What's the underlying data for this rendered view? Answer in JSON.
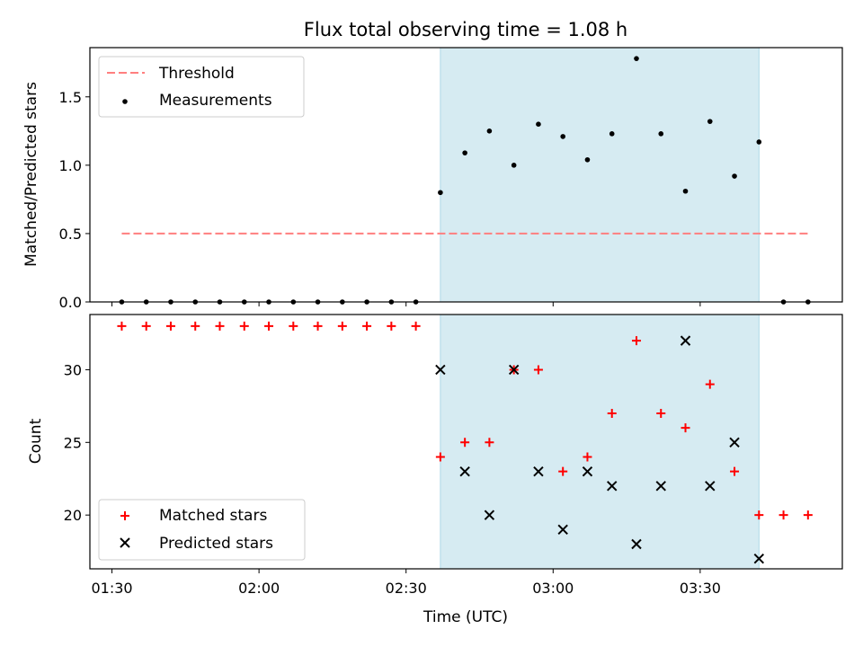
{
  "chart_data": {
    "title": "Flux total observing time = 1.08 h",
    "type": "scatter",
    "xlabel": "Time (UTC)",
    "x_ticks": [
      "01:30",
      "02:00",
      "02:30",
      "03:00",
      "03:30"
    ],
    "x_tick_minutes": [
      90,
      120,
      150,
      180,
      210
    ],
    "xlim_minutes": [
      85.5,
      239
    ],
    "shaded_span_minutes": [
      157,
      222
    ],
    "shade_color": "#add8e6",
    "times": [
      "01:32",
      "01:37",
      "01:42",
      "01:47",
      "01:52",
      "01:57",
      "02:02",
      "02:07",
      "02:12",
      "02:17",
      "02:22",
      "02:27",
      "02:32",
      "02:37",
      "02:42",
      "02:47",
      "02:52",
      "02:57",
      "03:02",
      "03:07",
      "03:12",
      "03:17",
      "03:22",
      "03:27",
      "03:32",
      "03:37",
      "03:42",
      "03:47",
      "03:52"
    ],
    "time_minutes": [
      92,
      97,
      102,
      107,
      112,
      117,
      122,
      127,
      132,
      137,
      142,
      147,
      152,
      157,
      162,
      167,
      172,
      177,
      182,
      187,
      192,
      197,
      202,
      207,
      212,
      217,
      222,
      227,
      232
    ],
    "panels": [
      {
        "ylabel": "Matched/Predicted stars",
        "ylim": [
          0,
          1.86
        ],
        "yticks": [
          "0.0",
          "0.5",
          "1.0",
          "1.5"
        ],
        "ytick_values": [
          0,
          0.5,
          1.0,
          1.5
        ],
        "legend_position": "upper left",
        "threshold": {
          "name": "Threshold",
          "value": 0.5,
          "x_range_minutes": [
            92,
            232
          ],
          "color": "#ff7f7f"
        },
        "measurements": {
          "name": "Measurements",
          "color": "#000000",
          "values": [
            0,
            0,
            0,
            0,
            0,
            0,
            0,
            0,
            0,
            0,
            0,
            0,
            0,
            0.8,
            1.09,
            1.25,
            1.0,
            1.3,
            1.21,
            1.04,
            1.23,
            1.78,
            1.23,
            0.81,
            1.32,
            0.92,
            1.17,
            0,
            0
          ]
        }
      },
      {
        "ylabel": "Count",
        "ylim": [
          16.3,
          33.8
        ],
        "yticks": [
          "20",
          "25",
          "30"
        ],
        "ytick_values": [
          20,
          25,
          30
        ],
        "legend_position": "lower left",
        "series": [
          {
            "name": "Matched stars",
            "marker": "+",
            "color": "#ff0000",
            "values": [
              33,
              33,
              33,
              33,
              33,
              33,
              33,
              33,
              33,
              33,
              33,
              33,
              33,
              24,
              25,
              25,
              30,
              30,
              23,
              24,
              27,
              32,
              27,
              26,
              29,
              23,
              20,
              20,
              20
            ]
          },
          {
            "name": "Predicted stars",
            "marker": "x",
            "color": "#000000",
            "values": [
              null,
              null,
              null,
              null,
              null,
              null,
              null,
              null,
              null,
              null,
              null,
              null,
              null,
              30,
              23,
              20,
              30,
              23,
              19,
              23,
              22,
              18,
              22,
              32,
              22,
              25,
              17,
              null,
              null
            ]
          }
        ]
      }
    ]
  }
}
